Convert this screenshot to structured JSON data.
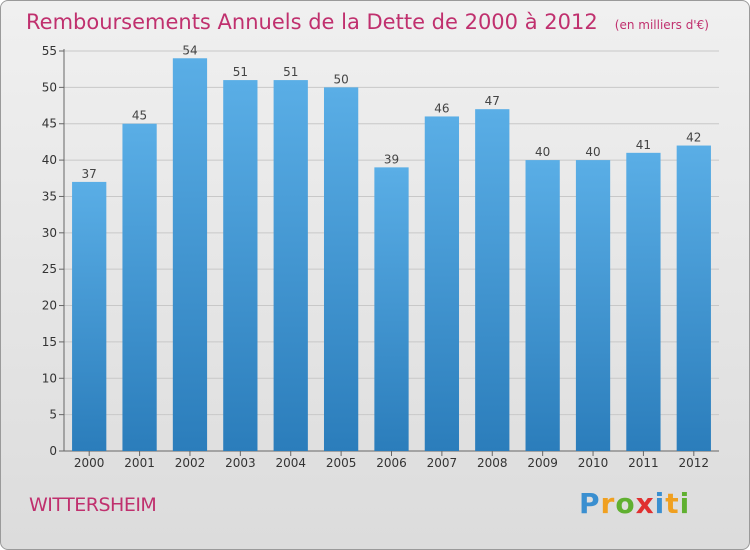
{
  "title": "Remboursements Annuels de la Dette de 2000 à 2012",
  "unit_note": "(en milliers d'€)",
  "commune": "WITTERSHEIM",
  "logo": {
    "letters": [
      "P",
      "r",
      "o",
      "x",
      "i",
      "t",
      "i"
    ],
    "colors": [
      "#3a8fd0",
      "#f0a020",
      "#60b030",
      "#e03030",
      "#3a8fd0",
      "#f0a020",
      "#60b030"
    ]
  },
  "colors": {
    "bar_top": "#5aaee6",
    "bar_bottom": "#2b7dbb",
    "title": "#c0306e"
  },
  "chart_data": {
    "type": "bar",
    "categories": [
      "2000",
      "2001",
      "2002",
      "2003",
      "2004",
      "2005",
      "2006",
      "2007",
      "2008",
      "2009",
      "2010",
      "2011",
      "2012"
    ],
    "values": [
      37,
      45,
      54,
      51,
      51,
      50,
      39,
      46,
      47,
      40,
      40,
      41,
      42
    ],
    "ylim": [
      0,
      55
    ],
    "yticks": [
      0,
      5,
      10,
      15,
      20,
      25,
      30,
      35,
      40,
      45,
      50,
      55
    ],
    "grid": true,
    "data_labels": true
  }
}
